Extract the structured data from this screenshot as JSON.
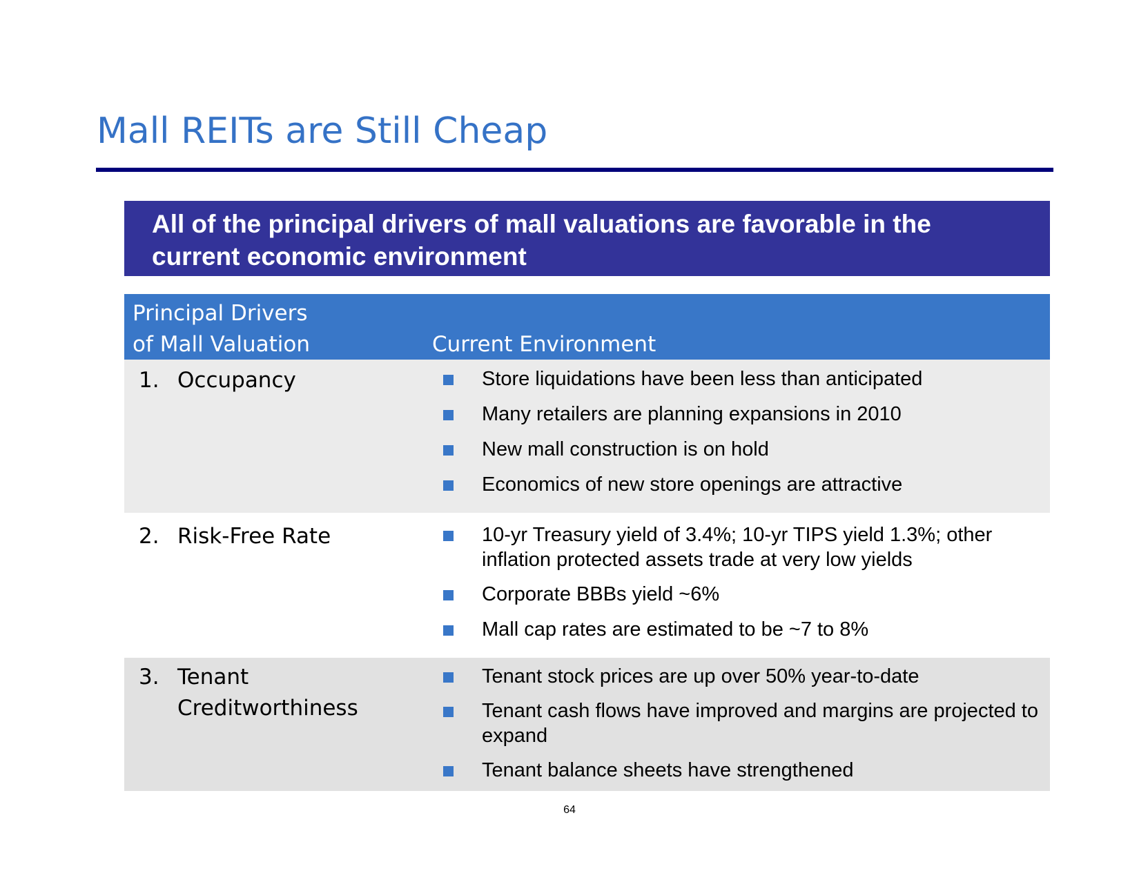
{
  "title": "Mall REITs are Still Cheap",
  "banner": "All of the principal drivers of mall valuations are favorable in the current economic environment",
  "table": {
    "header": {
      "col1_line1": "Principal Drivers",
      "col1_line2": "of Mall Valuation",
      "col2": "Current Environment"
    },
    "rows": [
      {
        "num": "1.",
        "label_line1": "Occupancy",
        "label_line2": "",
        "bullets": [
          "Store liquidations have been less than anticipated",
          "Many retailers are planning expansions in 2010",
          "New mall construction is on hold",
          "Economics of new store openings are attractive"
        ]
      },
      {
        "num": "2.",
        "label_line1": "Risk-Free Rate",
        "label_line2": "",
        "bullets": [
          "10-yr Treasury yield of 3.4%; 10-yr TIPS yield 1.3%; other inflation protected assets trade at very low yields",
          "Corporate BBBs yield ~6%",
          "Mall cap rates are estimated to be ~7 to 8%"
        ]
      },
      {
        "num": "3.",
        "label_line1": "Tenant",
        "label_line2": "Creditworthiness",
        "bullets": [
          "Tenant stock prices are up over 50% year-to-date",
          "Tenant cash flows have improved and margins are projected to expand",
          "Tenant balance sheets have strengthened"
        ]
      }
    ]
  },
  "page_number": "64",
  "colors": {
    "title": "#3572c6",
    "rule": "#00007a",
    "banner_bg": "#333399",
    "header_bg": "#3977c8",
    "bullet": "#3977c8"
  }
}
